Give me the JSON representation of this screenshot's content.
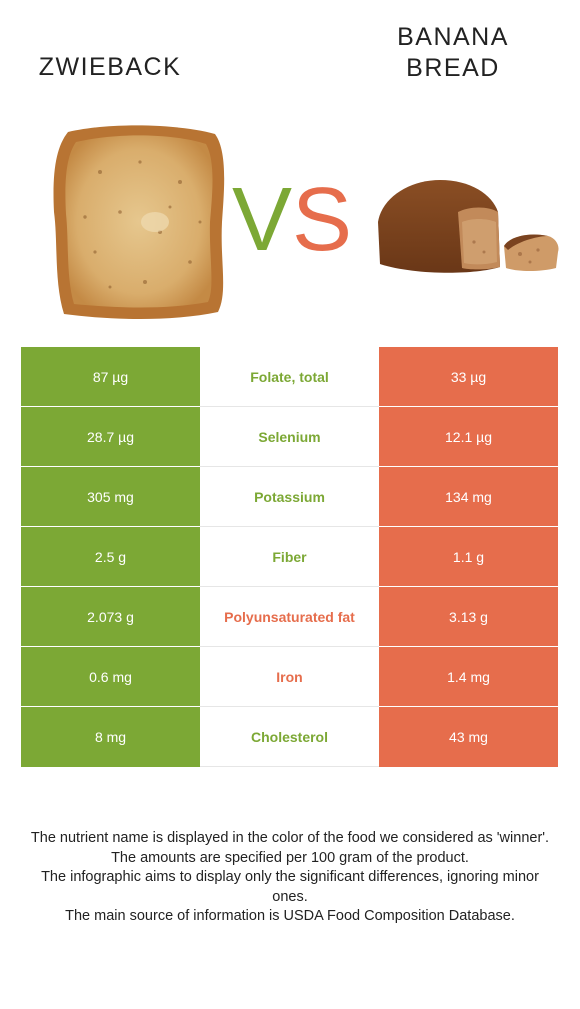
{
  "left_food": {
    "name": "ZWIEBACK",
    "image": "zwieback-toast-image",
    "color": "#7ca835"
  },
  "right_food": {
    "name_line1": "BANANA",
    "name_line2": "BREAD",
    "image": "banana-bread-image",
    "color": "#e66d4c"
  },
  "vs": {
    "v": "V",
    "s": "S"
  },
  "rows": [
    {
      "left": "87 µg",
      "nutrient": "Folate, total",
      "right": "33 µg",
      "winner": "left"
    },
    {
      "left": "28.7 µg",
      "nutrient": "Selenium",
      "right": "12.1 µg",
      "winner": "left"
    },
    {
      "left": "305 mg",
      "nutrient": "Potassium",
      "right": "134 mg",
      "winner": "left"
    },
    {
      "left": "2.5 g",
      "nutrient": "Fiber",
      "right": "1.1 g",
      "winner": "left"
    },
    {
      "left": "2.073 g",
      "nutrient": "Polyunsaturated fat",
      "right": "3.13 g",
      "winner": "right"
    },
    {
      "left": "0.6 mg",
      "nutrient": "Iron",
      "right": "1.4 mg",
      "winner": "right"
    },
    {
      "left": "8 mg",
      "nutrient": "Cholesterol",
      "right": "43 mg",
      "winner": "left"
    }
  ],
  "footer": {
    "line1": "The nutrient name is displayed in the color of the food we considered as 'winner'.",
    "line2": "The amounts are specified per 100 gram of the product.",
    "line3": "The infographic aims to display only the significant differences, ignoring minor ones.",
    "line4": "The main source of information is USDA Food Composition Database."
  }
}
